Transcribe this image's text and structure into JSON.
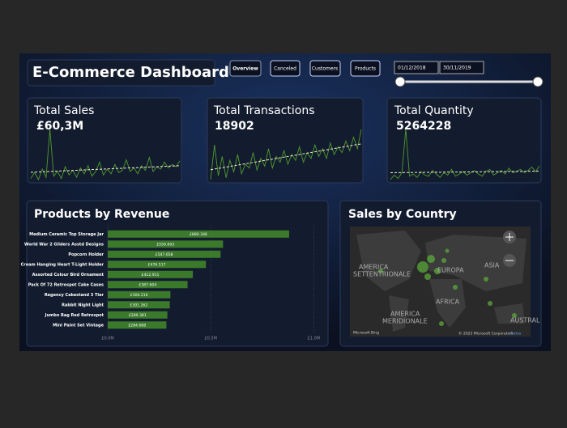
{
  "header": {
    "title": "E-Commerce Dashboard"
  },
  "tabs": [
    "Overview",
    "Canceled",
    "Customers",
    "Products"
  ],
  "date_range": [
    "01/12/2018",
    "30/11/2019"
  ],
  "kpis": [
    {
      "label": "Total Sales",
      "value": "£60,3M"
    },
    {
      "label": "Total Transactions",
      "value": "18902"
    },
    {
      "label": "Total Quantity",
      "value": "5264228"
    }
  ],
  "map": {
    "title": "Sales by Country",
    "regions": [
      "AMERICA",
      "SETTENTRIONALE",
      "EUROPA",
      "ASIA",
      "AFRICA",
      "AMERICA",
      "MERIDIONALE",
      "AUSTRAL"
    ],
    "provider": "Microsoft Bing",
    "copyright": "© 2023 Microsoft Corporation",
    "terms": "Terms"
  },
  "chart_data": [
    {
      "type": "bar",
      "title": "Products by Revenue",
      "color": "#3b7a2a",
      "categories": [
        "Medium Ceramic Top Storage Jar",
        "World War 2 Gliders Asstd Designs",
        "Popcorn Holder",
        "Cream Hanging Heart T-Light Holder",
        "Assorted Colour Bird Ornament",
        "Pack Of 72 Retrospot Cake Cases",
        "Regency Cakestand 3 Tier",
        "Rabbit Night Light",
        "Jumbo Bag Red Retrospot",
        "Mini Paint Set Vintage"
      ],
      "values": [
        0.880346,
        0.559693,
        0.547658,
        0.476517,
        0.412911,
        0.387604,
        0.304216,
        0.301262,
        0.289381,
        0.284688
      ],
      "value_labels": [
        "£880.346",
        "£559.693",
        "£547.658",
        "£476.517",
        "£412.911",
        "£387.604",
        "£304.216",
        "£301.262",
        "£289.381",
        "£284.688"
      ],
      "xlim": [
        0,
        1.03
      ],
      "xticks": [
        {
          "value": 0,
          "label": "£0.0M"
        },
        {
          "value": 0.5,
          "label": "£0.5M"
        },
        {
          "value": 1,
          "label": "£1.0M"
        }
      ],
      "grid": true
    },
    {
      "type": "line",
      "color": "#4f9a2e",
      "values": [
        40,
        65,
        35,
        80,
        45,
        250,
        50,
        70,
        40,
        90,
        55,
        75,
        45,
        85,
        60,
        95,
        50,
        70,
        110,
        55,
        80,
        60,
        100,
        65,
        75,
        120,
        70,
        85,
        60,
        95,
        75,
        130,
        70,
        90,
        80,
        110,
        85,
        100,
        90,
        115
      ]
    },
    {
      "type": "line",
      "color": "#4f9a2e",
      "values": [
        30,
        120,
        40,
        90,
        35,
        80,
        50,
        95,
        45,
        70,
        60,
        100,
        55,
        85,
        65,
        110,
        60,
        90,
        75,
        105,
        70,
        95,
        80,
        115,
        75,
        100,
        85,
        120,
        90,
        110,
        85,
        125,
        95,
        115,
        100,
        130,
        105,
        140,
        110,
        160
      ]
    },
    {
      "type": "line",
      "color": "#4f9a2e",
      "values": [
        30,
        50,
        35,
        60,
        250,
        45,
        55,
        40,
        65,
        50,
        45,
        70,
        55,
        40,
        60,
        50,
        75,
        45,
        55,
        65,
        50,
        60,
        70,
        55,
        45,
        65,
        75,
        50,
        60,
        70,
        55,
        80,
        60,
        65,
        75,
        60,
        70,
        85,
        65,
        90
      ]
    }
  ]
}
